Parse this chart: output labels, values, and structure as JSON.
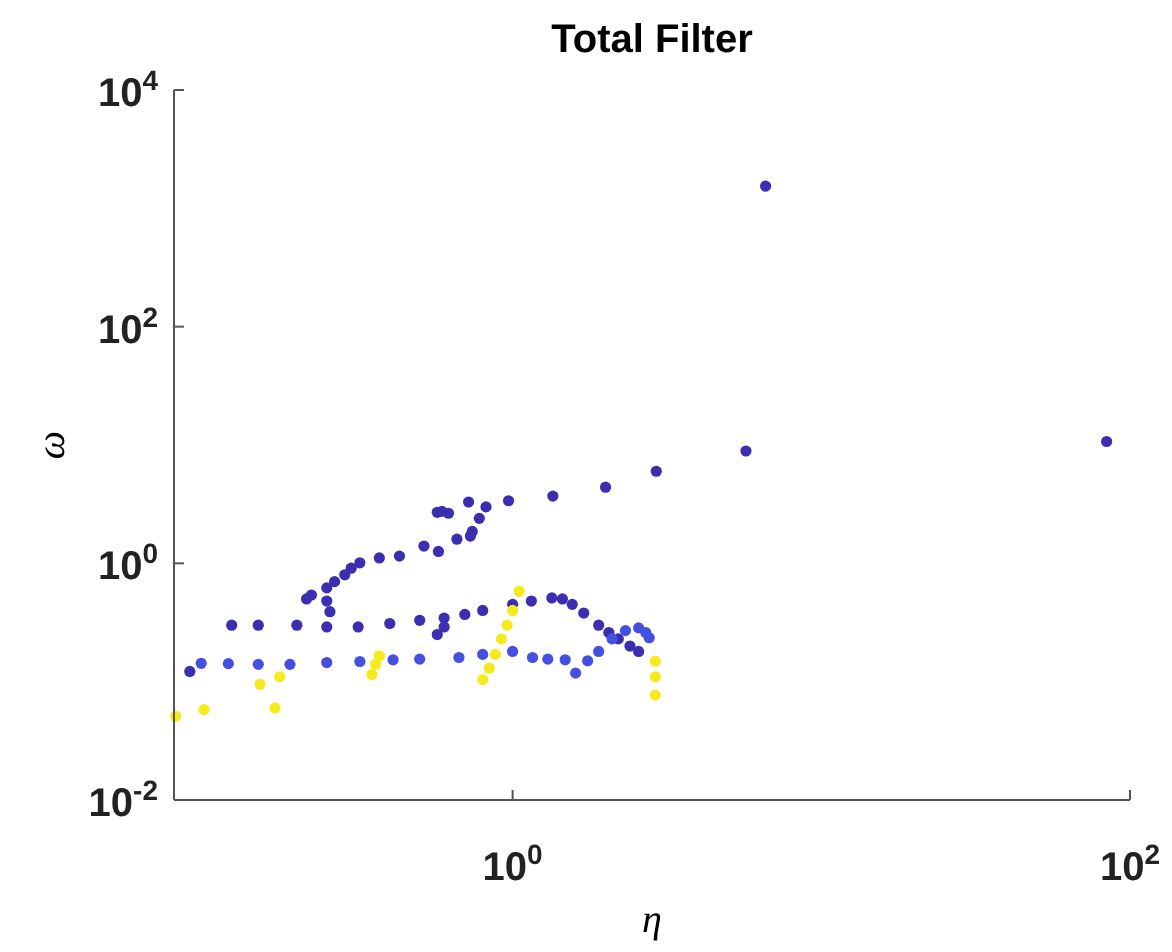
{
  "chart_data": {
    "type": "scatter",
    "title": "Total Filter",
    "xlabel": "η",
    "ylabel": "ω",
    "log": "xy",
    "marker": "circle",
    "grid": false,
    "xlim": [
      0.08,
      100
    ],
    "xticks": [
      {
        "value": 1,
        "label": "10$^{0}$"
      },
      {
        "value": 100,
        "label": "10$^{2}$"
      }
    ],
    "ylim": [
      0.01,
      10000
    ],
    "yticks": [
      {
        "value": 0.01,
        "label": "10$^{-2}$"
      },
      {
        "value": 1,
        "label": "10$^{0}$"
      },
      {
        "value": 100,
        "label": "10$^{2}$"
      },
      {
        "value": 10000,
        "label": "10$^{4}$"
      }
    ],
    "series": [
      {
        "color": "#3c2eb0",
        "x": [
          6.6,
          84,
          5.7,
          2.92,
          2.0,
          1.35,
          0.97,
          0.82,
          0.72,
          0.78,
          0.57,
          0.59,
          0.62,
          0.66,
          0.73,
          0.575,
          0.516,
          0.74,
          0.43,
          0.37,
          0.32,
          0.3,
          0.286,
          0.265,
          0.25,
          0.223,
          0.215,
          0.25,
          0.256,
          0.09,
          0.123,
          0.15,
          0.2,
          0.25,
          0.316,
          0.4,
          0.5,
          0.6,
          0.7,
          0.8,
          1.0,
          1.15,
          1.34,
          1.45,
          1.56,
          1.7,
          1.9,
          2.05,
          2.2,
          2.4,
          2.56,
          0.57,
          0.6
        ],
        "values": [
          1540,
          10.7,
          8.9,
          6.0,
          4.4,
          3.7,
          3.38,
          3.0,
          3.3,
          2.4,
          2.7,
          2.75,
          2.65,
          1.6,
          1.7,
          1.26,
          1.4,
          1.86,
          1.15,
          1.11,
          1.01,
          0.91,
          0.8,
          0.7,
          0.62,
          0.54,
          0.5,
          0.48,
          0.39,
          0.122,
          0.3,
          0.3,
          0.3,
          0.29,
          0.29,
          0.31,
          0.33,
          0.345,
          0.37,
          0.4,
          0.45,
          0.48,
          0.51,
          0.5,
          0.45,
          0.38,
          0.3,
          0.26,
          0.23,
          0.2,
          0.18,
          0.25,
          0.29
        ]
      },
      {
        "color": "#4650e0",
        "x": [
          0.098,
          0.12,
          0.15,
          0.19,
          0.25,
          0.32,
          0.41,
          0.5,
          0.67,
          0.8,
          1.0,
          1.16,
          1.3,
          1.48,
          1.6,
          1.75,
          1.9,
          2.1,
          2.32,
          2.56,
          2.7,
          2.77
        ],
        "values": [
          0.143,
          0.142,
          0.14,
          0.14,
          0.145,
          0.148,
          0.153,
          0.155,
          0.16,
          0.17,
          0.18,
          0.16,
          0.155,
          0.153,
          0.118,
          0.15,
          0.18,
          0.23,
          0.27,
          0.285,
          0.26,
          0.235
        ]
      },
      {
        "color": "#f5ea1c",
        "x": [
          0.8,
          0.84,
          0.88,
          0.92,
          0.96,
          1.0,
          1.05,
          0.35,
          0.36,
          0.37,
          2.9,
          2.9,
          2.9,
          0.081,
          0.1,
          0.152,
          0.176,
          0.17
        ],
        "values": [
          0.104,
          0.13,
          0.17,
          0.23,
          0.3,
          0.4,
          0.58,
          0.115,
          0.14,
          0.165,
          0.149,
          0.11,
          0.077,
          0.051,
          0.058,
          0.095,
          0.11,
          0.06
        ]
      }
    ]
  }
}
